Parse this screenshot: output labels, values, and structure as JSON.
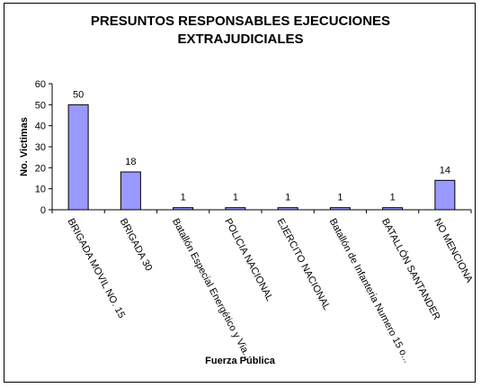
{
  "chart_data": {
    "type": "bar",
    "title_lines": [
      "PRESUNTOS RESPONSABLES EJECUCIONES",
      "EXTRAJUDICIALES"
    ],
    "xlabel": "Fuerza Pública",
    "ylabel": "No. Victimas",
    "ylim": [
      0,
      60
    ],
    "yticks": [
      0,
      10,
      20,
      30,
      40,
      50,
      60
    ],
    "categories": [
      "BRIGADA MOVIL NO. 15",
      "BRIGADA 30",
      "Batallón Especial Energético y Via...",
      "POLICIA NACIONAL",
      "EJERCITO NACIONAL",
      "Batallón de Infanteria Numero 15 o...",
      "BATALLÓN SANTANDER",
      "NO MENCIONA"
    ],
    "values": [
      50,
      18,
      1,
      1,
      1,
      1,
      1,
      14
    ],
    "bar_color": "#9999ff",
    "grid": false,
    "legend": "none"
  }
}
